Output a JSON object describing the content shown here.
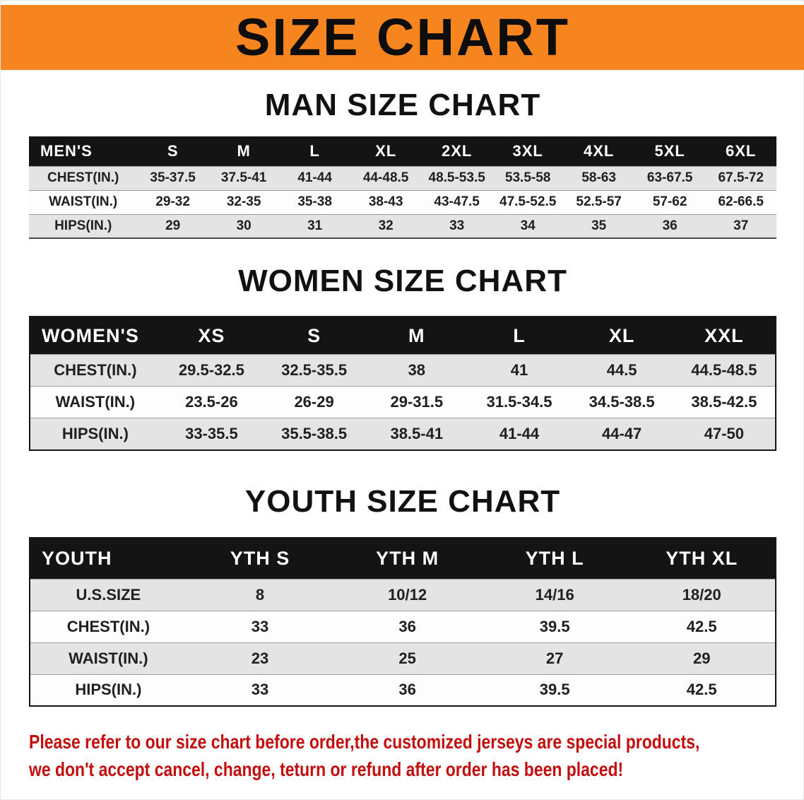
{
  "banner": {
    "title": "SIZE CHART",
    "accent_color": "#F6851F"
  },
  "sections": [
    {
      "id": "men",
      "heading": "MAN SIZE CHART",
      "table": {
        "header": [
          "MEN'S",
          "S",
          "M",
          "L",
          "XL",
          "2XL",
          "3XL",
          "4XL",
          "5XL",
          "6XL"
        ],
        "rows": [
          [
            "CHEST(IN.)",
            "35-37.5",
            "37.5-41",
            "41-44",
            "44-48.5",
            "48.5-53.5",
            "53.5-58",
            "58-63",
            "63-67.5",
            "67.5-72"
          ],
          [
            "WAIST(IN.)",
            "29-32",
            "32-35",
            "35-38",
            "38-43",
            "43-47.5",
            "47.5-52.5",
            "52.5-57",
            "57-62",
            "62-66.5"
          ],
          [
            "HIPS(IN.)",
            "29",
            "30",
            "31",
            "32",
            "33",
            "34",
            "35",
            "36",
            "37"
          ]
        ]
      }
    },
    {
      "id": "women",
      "heading": "WOMEN SIZE CHART",
      "table": {
        "header": [
          "WOMEN'S",
          "XS",
          "S",
          "M",
          "L",
          "XL",
          "XXL"
        ],
        "rows": [
          [
            "CHEST(IN.)",
            "29.5-32.5",
            "32.5-35.5",
            "38",
            "41",
            "44.5",
            "44.5-48.5"
          ],
          [
            "WAIST(IN.)",
            "23.5-26",
            "26-29",
            "29-31.5",
            "31.5-34.5",
            "34.5-38.5",
            "38.5-42.5"
          ],
          [
            "HIPS(IN.)",
            "33-35.5",
            "35.5-38.5",
            "38.5-41",
            "41-44",
            "44-47",
            "47-50"
          ]
        ]
      }
    },
    {
      "id": "youth",
      "heading": "YOUTH SIZE CHART",
      "table": {
        "header": [
          "YOUTH",
          "YTH S",
          "YTH M",
          "YTH L",
          "YTH XL"
        ],
        "rows": [
          [
            "U.S.SIZE",
            "8",
            "10/12",
            "14/16",
            "18/20"
          ],
          [
            "CHEST(IN.)",
            "33",
            "36",
            "39.5",
            "42.5"
          ],
          [
            "WAIST(IN.)",
            "23",
            "25",
            "27",
            "29"
          ],
          [
            "HIPS(IN.)",
            "33",
            "36",
            "39.5",
            "42.5"
          ]
        ]
      }
    }
  ],
  "footer": {
    "text_color": "#C40D0D",
    "lines": [
      "Please refer to our size chart before order,the customized jerseys are special products,",
      "we don't accept cancel, change, teturn or refund after order has been placed!"
    ]
  }
}
